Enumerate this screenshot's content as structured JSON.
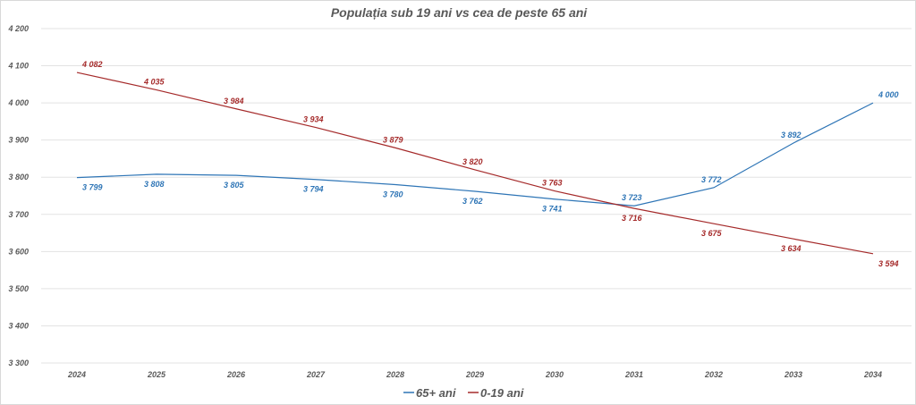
{
  "chart_data": {
    "type": "line",
    "title": "Populația sub 19 ani vs cea de peste 65 ani",
    "xlabel": "",
    "ylabel": "",
    "categories": [
      "2024",
      "2025",
      "2026",
      "2027",
      "2028",
      "2029",
      "2030",
      "2031",
      "2032",
      "2033",
      "2034"
    ],
    "ylim": [
      3300,
      4200
    ],
    "yticks": [
      3300,
      3400,
      3500,
      3600,
      3700,
      3800,
      3900,
      4000,
      4100,
      4200
    ],
    "ytick_labels": [
      "3 300",
      "3 400",
      "3 500",
      "3 600",
      "3 700",
      "3 800",
      "3 900",
      "4 000",
      "4 100",
      "4 200"
    ],
    "grid": true,
    "legend_position": "bottom",
    "series": [
      {
        "name": "65+ ani",
        "color": "#2e75b6",
        "values": [
          3799,
          3808,
          3805,
          3794,
          3780,
          3762,
          3741,
          3723,
          3772,
          3892,
          4000
        ],
        "labels": [
          "3 799",
          "3 808",
          "3 805",
          "3 794",
          "3 780",
          "3 762",
          "3 741",
          "3 723",
          "3 772",
          "3 892",
          "4 000"
        ]
      },
      {
        "name": "0-19 ani",
        "color": "#a52a2a",
        "values": [
          4082,
          4035,
          3984,
          3934,
          3879,
          3820,
          3763,
          3716,
          3675,
          3634,
          3594
        ],
        "labels": [
          "4 082",
          "4 035",
          "3 984",
          "3 934",
          "3 879",
          "3 820",
          "3 763",
          "3 716",
          "3 675",
          "3 634",
          "3 594"
        ]
      }
    ]
  }
}
